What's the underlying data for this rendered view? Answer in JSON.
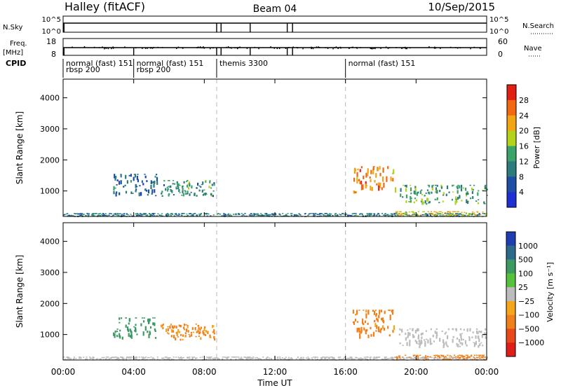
{
  "header": {
    "station": "Halley (fitACF)",
    "beam": "Beam 04",
    "date": "10/Sep/2015"
  },
  "top_panels": {
    "nsky": {
      "left_label": "N.Sky",
      "right_label": "N.Search",
      "left_ticks": [
        "10^5",
        "10^0"
      ],
      "right_ticks": [
        "10^5",
        "10^0"
      ]
    },
    "freq": {
      "left_label": "Freq.",
      "left_unit": "[MHz]",
      "right_label": "Nave",
      "left_ticks": [
        "18",
        "8"
      ],
      "right_ticks": [
        "60",
        "0"
      ]
    },
    "cpid": {
      "label": "CPID",
      "segments": [
        {
          "name": "normal (fast) 151",
          "start": 0.0,
          "end": 4.0
        },
        {
          "name": "rbsp 200",
          "start": 0.0,
          "end": 4.0
        },
        {
          "name": "normal (fast) 151",
          "start": 4.0,
          "end": 8.7
        },
        {
          "name": "rbsp 200",
          "start": 4.0,
          "end": 8.7
        },
        {
          "name": "themis 3300",
          "start": 8.7,
          "end": 16.0
        },
        {
          "name": "normal (fast) 151",
          "start": 16.0,
          "end": 24.0
        }
      ]
    }
  },
  "chart_data": [
    {
      "type": "heatmap",
      "panel": "power",
      "ylabel": "Slant Range [km]",
      "ylim": [
        180,
        4600
      ],
      "yticks": [
        1000,
        2000,
        3000,
        4000
      ],
      "xlim": [
        0,
        24
      ],
      "xticks": [
        "00:00",
        "04:00",
        "08:00",
        "12:00",
        "16:00",
        "20:00",
        "00:00"
      ],
      "colorbar": {
        "label": "Power [dB]",
        "ticks": [
          4,
          8,
          12,
          16,
          20,
          24,
          28
        ],
        "range": [
          0,
          32
        ]
      },
      "regions": [
        {
          "t0": 0.0,
          "t1": 24.0,
          "r0": 180,
          "r1": 290,
          "value": 10
        },
        {
          "t0": 2.8,
          "t1": 5.3,
          "r0": 820,
          "r1": 1550,
          "value": 8
        },
        {
          "t0": 5.5,
          "t1": 8.6,
          "r0": 800,
          "r1": 1350,
          "value": 12
        },
        {
          "t0": 16.4,
          "t1": 18.8,
          "r0": 850,
          "r1": 1800,
          "value": 24
        },
        {
          "t0": 19.0,
          "t1": 24.0,
          "r0": 550,
          "r1": 1200,
          "value": 14
        },
        {
          "t0": 18.8,
          "t1": 24.0,
          "r0": 180,
          "r1": 350,
          "value": 20
        }
      ]
    },
    {
      "type": "heatmap",
      "panel": "velocity",
      "ylabel": "Slant Range [km]",
      "xlabel": "Time UT",
      "ylim": [
        180,
        4600
      ],
      "yticks": [
        1000,
        2000,
        3000,
        4000
      ],
      "xlim": [
        0,
        24
      ],
      "xticks": [
        "00:00",
        "04:00",
        "08:00",
        "12:00",
        "16:00",
        "20:00",
        "00:00"
      ],
      "colorbar": {
        "label": "Velocity [m s⁻¹]",
        "ticks": [
          "1000",
          "500",
          "100",
          "25",
          "−25",
          "−100",
          "−500",
          "−1000"
        ]
      },
      "regions": [
        {
          "t0": 0.0,
          "t1": 24.0,
          "r0": 180,
          "r1": 290,
          "value": 0
        },
        {
          "t0": 2.8,
          "t1": 5.3,
          "r0": 820,
          "r1": 1550,
          "value": 300
        },
        {
          "t0": 5.5,
          "t1": 8.6,
          "r0": 800,
          "r1": 1350,
          "value": -150
        },
        {
          "t0": 16.4,
          "t1": 18.8,
          "r0": 850,
          "r1": 1800,
          "value": -200
        },
        {
          "t0": 19.0,
          "t1": 24.0,
          "r0": 550,
          "r1": 1200,
          "value": 0
        },
        {
          "t0": 18.8,
          "t1": 24.0,
          "r0": 180,
          "r1": 350,
          "value": -300
        }
      ]
    }
  ],
  "colors": {
    "power_scale": [
      "#1f2fd1",
      "#1d4fa5",
      "#2c7c7c",
      "#3aa36a",
      "#b5d21b",
      "#f2a413",
      "#f26810",
      "#e11f12"
    ],
    "velocity_scale": [
      "#1f3fb0",
      "#2c6a8c",
      "#3c9a63",
      "#58c13b",
      "#bcbcbc",
      "#f5a51a",
      "#f0801a",
      "#e8481a",
      "#df1e1a"
    ],
    "event_line": "#b8b8b8"
  }
}
